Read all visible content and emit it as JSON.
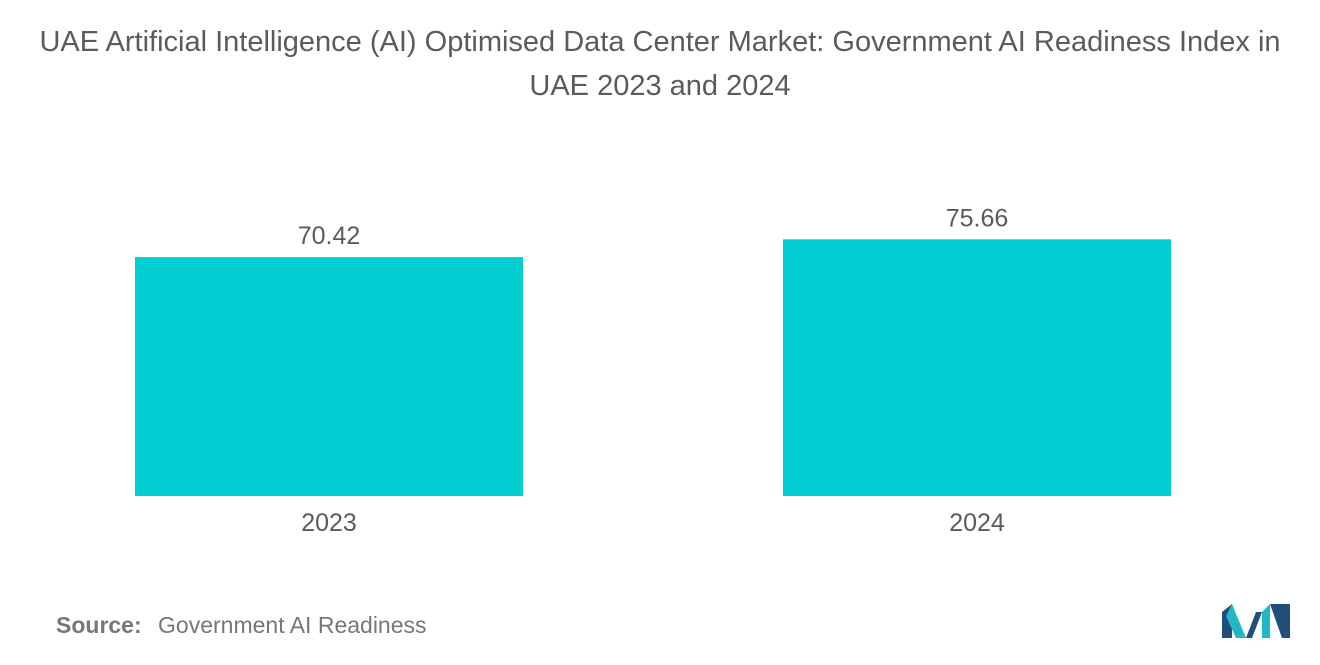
{
  "title": "UAE Artificial Intelligence (AI) Optimised Data Center Market: Government AI Readiness Index in UAE 2023 and 2024",
  "source": {
    "label": "Source:",
    "text": "Government AI Readiness"
  },
  "colors": {
    "bar": "#00ced1",
    "text": "#5b5b5b",
    "logo_dark": "#1f4e79",
    "logo_light": "#20b8c8"
  },
  "logo_icon": "mordor-intelligence-logo-icon",
  "chart_data": {
    "type": "bar",
    "title": "UAE Artificial Intelligence (AI) Optimised Data Center Market: Government AI Readiness Index in UAE 2023 and 2024",
    "categories": [
      "2023",
      "2024"
    ],
    "values": [
      70.42,
      75.66
    ],
    "value_labels": [
      "70.42",
      "75.66"
    ],
    "xlabel": "",
    "ylabel": "",
    "ylim": [
      0,
      80
    ],
    "grid": false,
    "legend": "none"
  }
}
